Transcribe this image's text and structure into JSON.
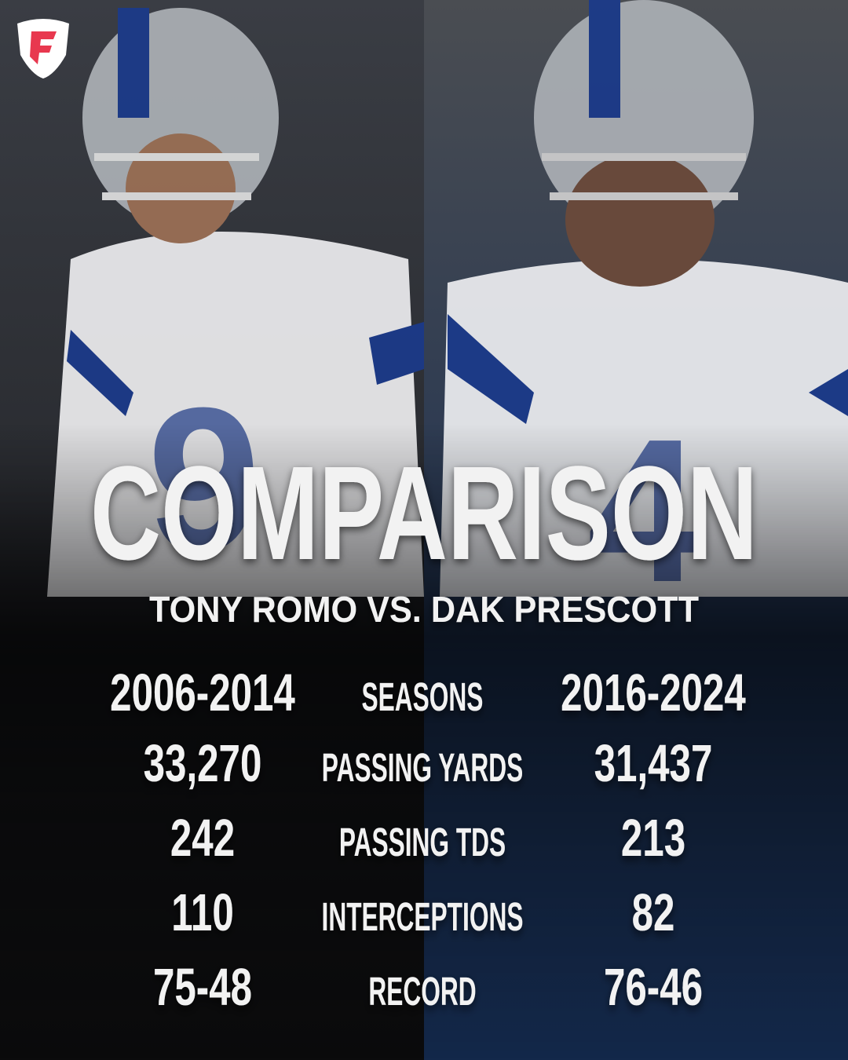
{
  "header": {
    "title": "COMPARISON",
    "subtitle": "TONY ROMO VS. DAK PRESCOTT"
  },
  "table": {
    "rows": [
      [
        "2006-2014",
        "SEASONS",
        "2016-2024"
      ],
      [
        "33,270",
        "PASSING YARDS",
        "31,437"
      ],
      [
        "242",
        "PASSING TDS",
        "213"
      ],
      [
        "110",
        "INTERCEPTIONS",
        "82"
      ],
      [
        "75-48",
        "RECORD",
        "76-46"
      ]
    ]
  }
}
